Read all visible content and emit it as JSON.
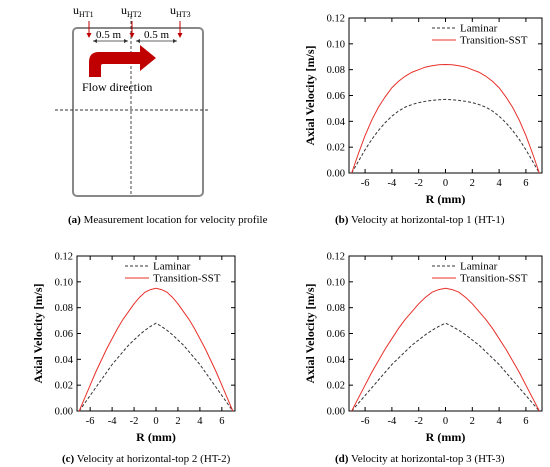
{
  "panel_a": {
    "labels": [
      {
        "main": "u",
        "sub": "HT1"
      },
      {
        "main": "u",
        "sub": "HT2"
      },
      {
        "main": "u",
        "sub": "HT3"
      }
    ],
    "distance_left": "0.5 m",
    "distance_right": "0.5 m",
    "flow_label": "Flow direction",
    "caption_letter": "(a)",
    "caption_text": " Measurement location for velocity profile",
    "colors": {
      "arrow": "#c00000",
      "box": "#888888"
    }
  },
  "captions": [
    {
      "letter": "(b)",
      "text": " Velocity at horizontal-top 1 (HT-1)"
    },
    {
      "letter": "(c)",
      "text": " Velocity at horizontal-top 2 (HT-2)"
    },
    {
      "letter": "(d)",
      "text": " Velocity at horizontal-top 3 (HT-3)"
    }
  ],
  "chart_data": [
    {
      "type": "line",
      "xlabel": "R (mm)",
      "ylabel": "Axial Velocity [m/s]",
      "xlim": [
        -7.2,
        7.2
      ],
      "ylim": [
        0,
        0.12
      ],
      "xticks": [
        -6,
        -4,
        -2,
        0,
        2,
        4,
        6
      ],
      "yticks": [
        0.0,
        0.02,
        0.04,
        0.06,
        0.08,
        0.1,
        0.12
      ],
      "ytick_labels": [
        "0.00",
        "0.02",
        "0.04",
        "0.06",
        "0.08",
        "0.10",
        "0.12"
      ],
      "legend_position": "top-right",
      "x": [
        -7,
        -6.5,
        -6,
        -5.5,
        -5,
        -4.5,
        -4,
        -3.5,
        -3,
        -2.5,
        -2,
        -1.5,
        -1,
        -0.5,
        0,
        0.5,
        1,
        1.5,
        2,
        2.5,
        3,
        3.5,
        4,
        4.5,
        5,
        5.5,
        6,
        6.5,
        7
      ],
      "series": [
        {
          "name": "Laminar",
          "color": "#333333",
          "dash": "dashed",
          "values": [
            0.0,
            0.009,
            0.018,
            0.026,
            0.033,
            0.039,
            0.044,
            0.048,
            0.051,
            0.053,
            0.0545,
            0.0555,
            0.0562,
            0.0567,
            0.057,
            0.0567,
            0.0562,
            0.0555,
            0.0545,
            0.053,
            0.051,
            0.048,
            0.044,
            0.039,
            0.033,
            0.026,
            0.018,
            0.009,
            0.0
          ]
        },
        {
          "name": "Transition-SST",
          "color": "#e8302a",
          "dash": "solid",
          "values": [
            0.0,
            0.015,
            0.029,
            0.041,
            0.051,
            0.059,
            0.066,
            0.071,
            0.075,
            0.078,
            0.08,
            0.082,
            0.083,
            0.0838,
            0.084,
            0.0838,
            0.083,
            0.082,
            0.08,
            0.078,
            0.075,
            0.071,
            0.066,
            0.059,
            0.051,
            0.041,
            0.029,
            0.015,
            0.0
          ]
        }
      ]
    },
    {
      "type": "line",
      "xlabel": "R (mm)",
      "ylabel": "Axial Velocity [m/s]",
      "xlim": [
        -7.2,
        7.2
      ],
      "ylim": [
        0,
        0.12
      ],
      "xticks": [
        -6,
        -4,
        -2,
        0,
        2,
        4,
        6
      ],
      "yticks": [
        0.0,
        0.02,
        0.04,
        0.06,
        0.08,
        0.1,
        0.12
      ],
      "ytick_labels": [
        "0.00",
        "0.02",
        "0.04",
        "0.06",
        "0.08",
        "0.10",
        "0.12"
      ],
      "legend_position": "top-right",
      "x": [
        -7,
        -6.5,
        -6,
        -5.5,
        -5,
        -4.5,
        -4,
        -3.5,
        -3,
        -2.5,
        -2,
        -1.5,
        -1,
        -0.5,
        0,
        0.5,
        1,
        1.5,
        2,
        2.5,
        3,
        3.5,
        4,
        4.5,
        5,
        5.5,
        6,
        6.5,
        7
      ],
      "series": [
        {
          "name": "Laminar",
          "color": "#333333",
          "dash": "dashed",
          "values": [
            0.0,
            0.006,
            0.012,
            0.018,
            0.024,
            0.03,
            0.036,
            0.041,
            0.046,
            0.051,
            0.055,
            0.059,
            0.0625,
            0.0655,
            0.068,
            0.0655,
            0.0625,
            0.059,
            0.055,
            0.051,
            0.046,
            0.041,
            0.036,
            0.03,
            0.024,
            0.018,
            0.012,
            0.006,
            0.0
          ]
        },
        {
          "name": "Transition-SST",
          "color": "#e8302a",
          "dash": "solid",
          "values": [
            0.0,
            0.01,
            0.02,
            0.03,
            0.039,
            0.048,
            0.056,
            0.064,
            0.071,
            0.077,
            0.083,
            0.088,
            0.092,
            0.094,
            0.095,
            0.094,
            0.092,
            0.088,
            0.083,
            0.077,
            0.071,
            0.064,
            0.056,
            0.048,
            0.039,
            0.03,
            0.02,
            0.01,
            0.0
          ]
        }
      ]
    },
    {
      "type": "line",
      "xlabel": "R (mm)",
      "ylabel": "Axial Velocity [m/s]",
      "xlim": [
        -7.2,
        7.2
      ],
      "ylim": [
        0,
        0.12
      ],
      "xticks": [
        -6,
        -4,
        -2,
        0,
        2,
        4,
        6
      ],
      "yticks": [
        0.0,
        0.02,
        0.04,
        0.06,
        0.08,
        0.1,
        0.12
      ],
      "ytick_labels": [
        "0.00",
        "0.02",
        "0.04",
        "0.06",
        "0.08",
        "0.10",
        "0.12"
      ],
      "legend_position": "top-right",
      "x": [
        -7,
        -6.5,
        -6,
        -5.5,
        -5,
        -4.5,
        -4,
        -3.5,
        -3,
        -2.5,
        -2,
        -1.5,
        -1,
        -0.5,
        0,
        0.5,
        1,
        1.5,
        2,
        2.5,
        3,
        3.5,
        4,
        4.5,
        5,
        5.5,
        6,
        6.5,
        7
      ],
      "series": [
        {
          "name": "Laminar",
          "color": "#333333",
          "dash": "dashed",
          "values": [
            0.0,
            0.006,
            0.012,
            0.018,
            0.024,
            0.03,
            0.036,
            0.041,
            0.046,
            0.051,
            0.055,
            0.059,
            0.0625,
            0.0655,
            0.068,
            0.0655,
            0.0625,
            0.059,
            0.055,
            0.051,
            0.046,
            0.041,
            0.036,
            0.03,
            0.024,
            0.018,
            0.012,
            0.006,
            0.0
          ]
        },
        {
          "name": "Transition-SST",
          "color": "#e8302a",
          "dash": "solid",
          "values": [
            0.0,
            0.01,
            0.02,
            0.03,
            0.039,
            0.048,
            0.056,
            0.064,
            0.071,
            0.077,
            0.083,
            0.088,
            0.092,
            0.094,
            0.095,
            0.094,
            0.092,
            0.088,
            0.083,
            0.077,
            0.071,
            0.064,
            0.056,
            0.048,
            0.039,
            0.03,
            0.02,
            0.01,
            0.0
          ]
        }
      ]
    }
  ]
}
